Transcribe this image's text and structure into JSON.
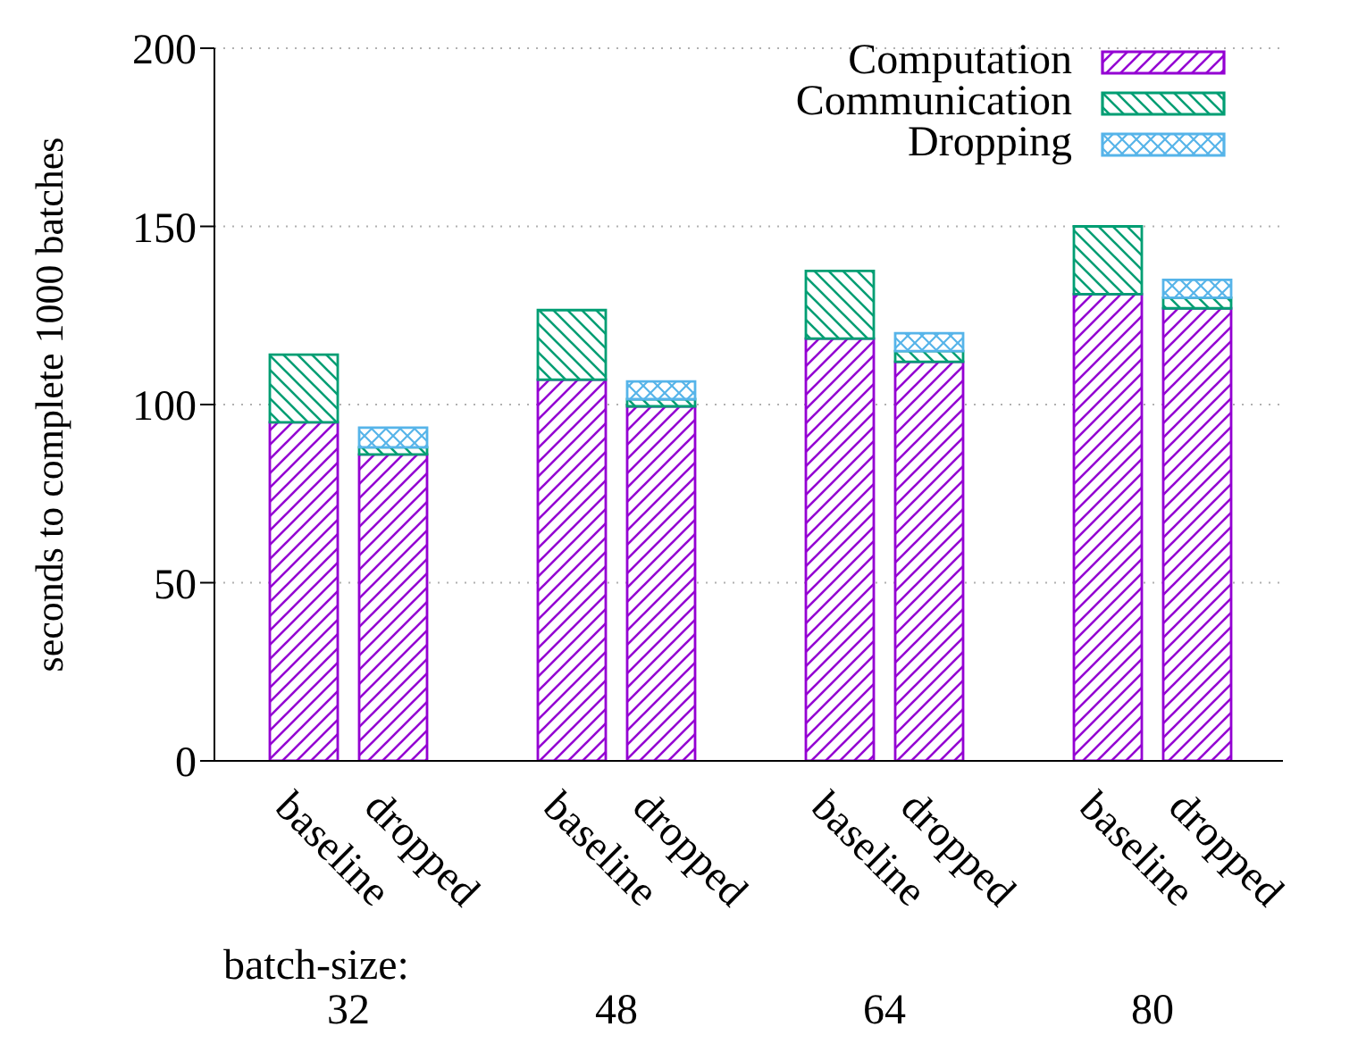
{
  "chart_data": {
    "type": "bar",
    "ylabel": "seconds to complete 1000 batches",
    "categories": [
      "baseline",
      "dropped",
      null,
      "baseline",
      "dropped",
      null,
      "baseline",
      "dropped",
      null,
      "baseline",
      "dropped"
    ],
    "series": [
      {
        "name": "Computation",
        "color": "#9400d3",
        "values": [
          95,
          86,
          null,
          107,
          99.5,
          null,
          118.5,
          112,
          null,
          131,
          127
        ]
      },
      {
        "name": "Communication",
        "color": "#009e73",
        "values": [
          19,
          2,
          null,
          19.5,
          2,
          null,
          19,
          3,
          null,
          19,
          3
        ]
      },
      {
        "name": "Dropping",
        "color": "#56b4e9",
        "values": [
          null,
          5.5,
          null,
          null,
          5,
          null,
          null,
          5,
          null,
          null,
          5
        ]
      }
    ],
    "stacked": true,
    "ylim": [
      0,
      200
    ],
    "yticks": [
      0,
      50,
      100,
      150,
      200
    ],
    "grid": "y",
    "legend": "top right",
    "annotations": [
      "batch-size:",
      "32",
      "48",
      "64",
      "80"
    ]
  }
}
